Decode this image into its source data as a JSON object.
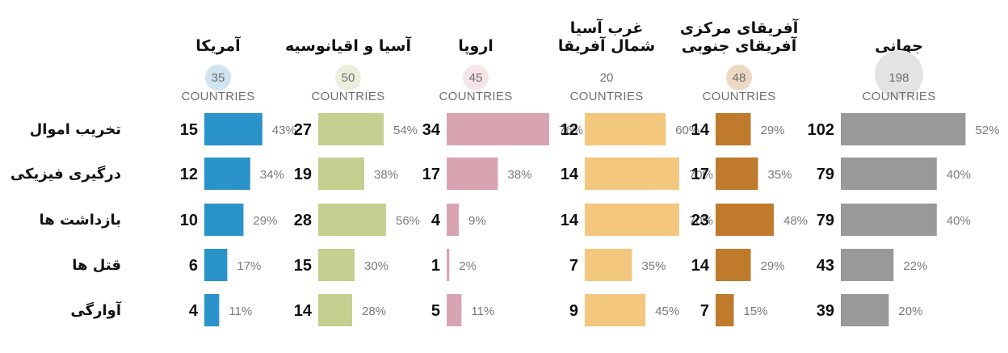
{
  "chart_data": {
    "type": "bar",
    "countries_label": "COUNTRIES",
    "categories": [
      "تخریب اموال",
      "درگیری فیزیکی",
      "بازداشت ها",
      "قتل ها",
      "آوارگی"
    ],
    "series": [
      {
        "name": "آمریکا",
        "name_lines": [
          "آمریکا"
        ],
        "countries": 35,
        "color": "#2a93c9",
        "circle_color": "#cfe3f0",
        "values": [
          15,
          12,
          10,
          6,
          4
        ],
        "percent_labels": [
          "43%",
          "34%",
          "29%",
          "17%",
          "11%"
        ]
      },
      {
        "name": "آسیا و اقیانوسیه",
        "name_lines": [
          "آسیا و اقیانوسیه"
        ],
        "countries": 50,
        "color": "#c5cf8f",
        "circle_color": "#eceedd",
        "values": [
          27,
          19,
          28,
          15,
          14
        ],
        "percent_labels": [
          "54%",
          "38%",
          "56%",
          "30%",
          "28%"
        ]
      },
      {
        "name": "اروپا",
        "name_lines": [
          "اروپا"
        ],
        "countries": 45,
        "color": "#d8a4b1",
        "circle_color": "#f5e4e8",
        "values": [
          34,
          17,
          4,
          1,
          5
        ],
        "percent_labels": [
          "76%",
          "38%",
          "9%",
          "2%",
          "11%"
        ]
      },
      {
        "name": "غرب آسیا شمال آفریقا",
        "name_lines": [
          "غرب آسیا",
          "شمال آفریقا"
        ],
        "countries": 20,
        "color": "#f3c77e",
        "circle_color": "#ffffff",
        "values": [
          12,
          14,
          14,
          7,
          9
        ],
        "percent_labels": [
          "60%",
          "70%",
          "70%",
          "35%",
          "45%"
        ]
      },
      {
        "name": "آفریقای مرکزی آفریقای جنوبی",
        "name_lines": [
          "آفریقای مرکزی",
          "آفریقای جنوبی"
        ],
        "countries": 48,
        "color": "#c07a2c",
        "circle_color": "#ecd9c3",
        "values": [
          14,
          17,
          23,
          14,
          7
        ],
        "percent_labels": [
          "29%",
          "35%",
          "48%",
          "29%",
          "15%"
        ]
      },
      {
        "name": "جهانی",
        "name_lines": [
          "جهانی"
        ],
        "countries": 198,
        "color": "#999999",
        "circle_color": "#e3e3e3",
        "values": [
          102,
          79,
          79,
          43,
          39
        ],
        "percent_labels": [
          "52%",
          "40%",
          "40%",
          "22%",
          "20%"
        ]
      }
    ]
  }
}
